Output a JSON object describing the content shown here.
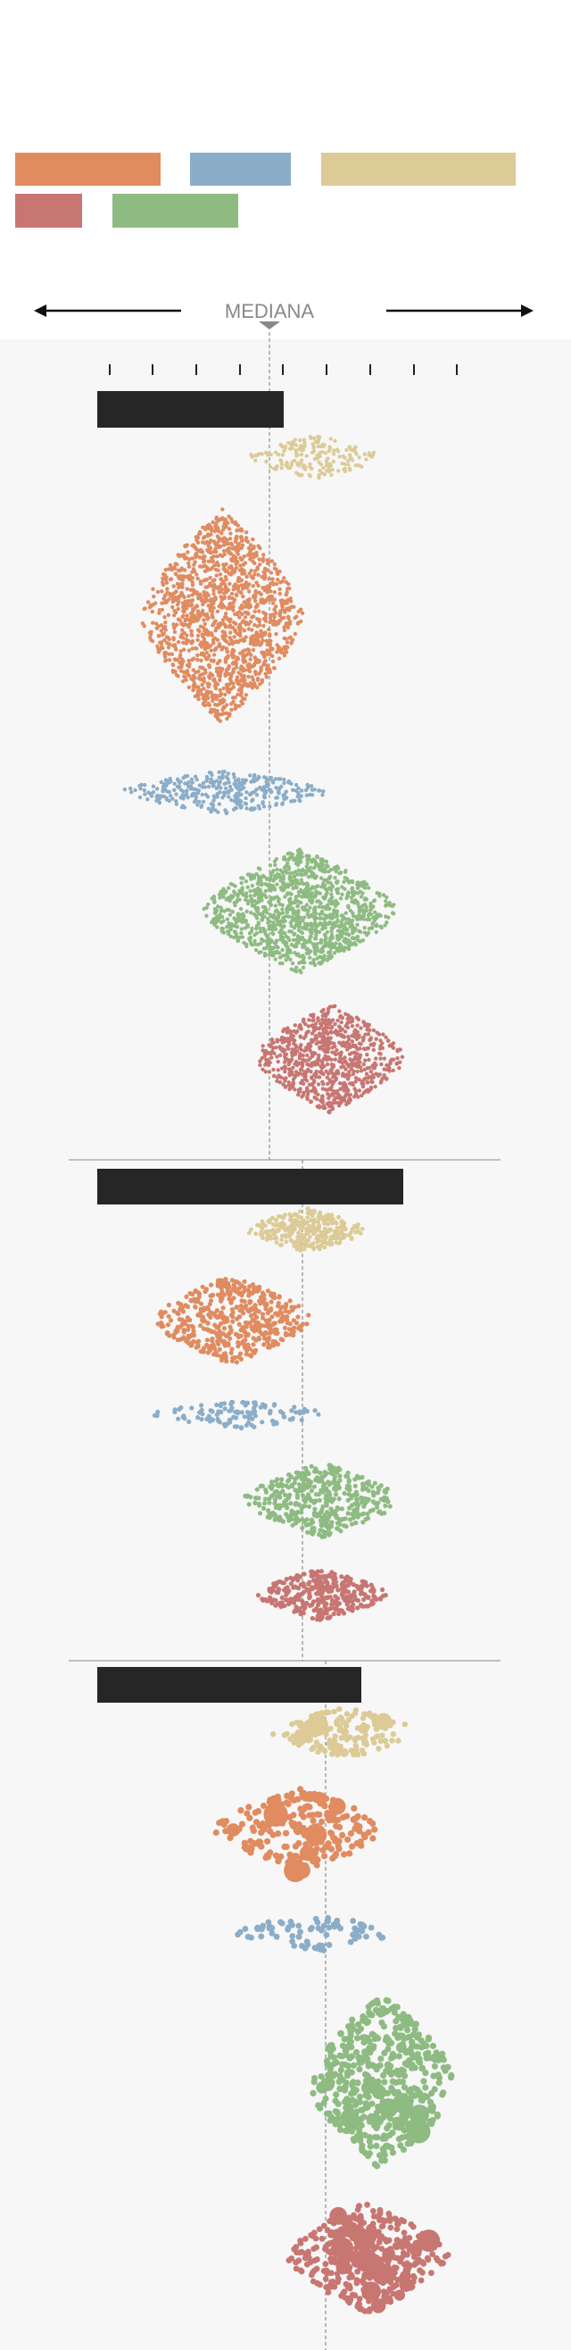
{
  "median_label": "MEDIANA",
  "legend": [
    {
      "color": "#e08b60"
    },
    {
      "color": "#8badc8"
    },
    {
      "color": "#dccb97"
    },
    {
      "color": "#c87672"
    },
    {
      "color": "#8ebb82"
    }
  ]
}
